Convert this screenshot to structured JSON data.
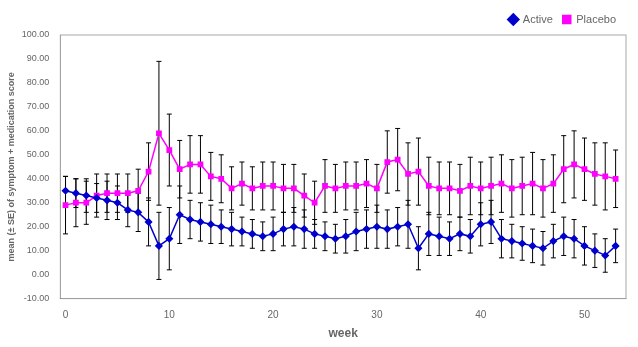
{
  "chart_data": {
    "type": "line",
    "xlabel": "week",
    "ylabel": "mean (± SE) of symptom + medication score",
    "x": [
      0,
      1,
      2,
      3,
      4,
      5,
      6,
      7,
      8,
      9,
      10,
      11,
      12,
      13,
      14,
      15,
      16,
      17,
      18,
      19,
      20,
      21,
      22,
      23,
      24,
      25,
      26,
      27,
      28,
      29,
      30,
      31,
      32,
      33,
      34,
      35,
      36,
      37,
      38,
      39,
      40,
      41,
      42,
      43,
      44,
      45,
      46,
      47,
      48,
      49,
      50,
      51,
      52,
      53
    ],
    "series": [
      {
        "name": "Active",
        "color": "#0000CC",
        "marker": "diamond",
        "values": [
          35,
          34,
          33,
          32,
          31,
          30,
          27,
          26,
          22,
          12,
          15,
          25,
          23,
          22,
          21,
          20,
          19,
          18,
          17,
          16,
          17,
          19,
          20,
          19,
          17,
          16,
          15,
          16,
          18,
          19,
          20,
          19,
          20,
          21,
          11,
          17,
          16,
          15,
          17,
          16,
          21,
          22,
          15,
          14,
          13,
          12,
          11,
          14,
          16,
          15,
          12,
          10,
          8,
          12
        ],
        "errors": [
          6,
          6,
          7,
          6,
          8,
          7,
          7,
          8,
          10,
          14,
          13,
          12,
          8,
          8,
          8,
          7,
          7,
          6,
          6,
          6,
          7,
          7,
          8,
          8,
          6,
          6,
          6,
          7,
          8,
          8,
          9,
          8,
          8,
          10,
          9,
          9,
          8,
          7,
          7,
          7,
          9,
          9,
          8,
          7,
          7,
          7,
          7,
          7,
          8,
          8,
          8,
          7,
          7,
          7
        ]
      },
      {
        "name": "Placebo",
        "color": "#FF00FF",
        "marker": "square",
        "values": [
          29,
          30,
          30,
          33,
          34,
          34,
          34,
          35,
          43,
          59,
          52,
          44,
          46,
          46,
          41,
          40,
          36,
          38,
          36,
          37,
          37,
          36,
          36,
          33,
          30,
          37,
          36,
          37,
          37,
          38,
          36,
          47,
          48,
          42,
          43,
          37,
          36,
          36,
          35,
          37,
          36,
          37,
          38,
          36,
          37,
          38,
          36,
          38,
          44,
          46,
          44,
          42,
          41,
          40
        ],
        "errors": [
          12,
          10,
          9,
          9,
          8,
          8,
          8,
          9,
          12,
          30,
          15,
          12,
          12,
          12,
          10,
          10,
          9,
          9,
          9,
          10,
          10,
          10,
          10,
          9,
          9,
          11,
          10,
          10,
          10,
          10,
          10,
          13,
          13,
          13,
          14,
          12,
          11,
          11,
          11,
          12,
          11,
          12,
          12,
          12,
          12,
          13,
          12,
          12,
          14,
          14,
          13,
          13,
          14,
          12
        ]
      }
    ],
    "xlim": [
      -0.5,
      54
    ],
    "xticks": [
      0,
      10,
      20,
      30,
      40,
      50
    ],
    "ylim": [
      -10,
      100
    ],
    "yticks": [
      {
        "value": -10,
        "label": "-10.00"
      },
      {
        "value": 0,
        "label": "0.00"
      },
      {
        "value": 10,
        "label": "10.00"
      },
      {
        "value": 20,
        "label": "20.00"
      },
      {
        "value": 30,
        "label": "30.00"
      },
      {
        "value": 40,
        "label": "40.00"
      },
      {
        "value": 50,
        "label": "50.00"
      },
      {
        "value": 60,
        "label": "60.00"
      },
      {
        "value": 70,
        "label": "70.00"
      },
      {
        "value": 80,
        "label": "80.00"
      },
      {
        "value": 90,
        "label": "90.00"
      },
      {
        "value": 100,
        "label": "100.00"
      }
    ],
    "grid": false,
    "legend": "upper right"
  }
}
